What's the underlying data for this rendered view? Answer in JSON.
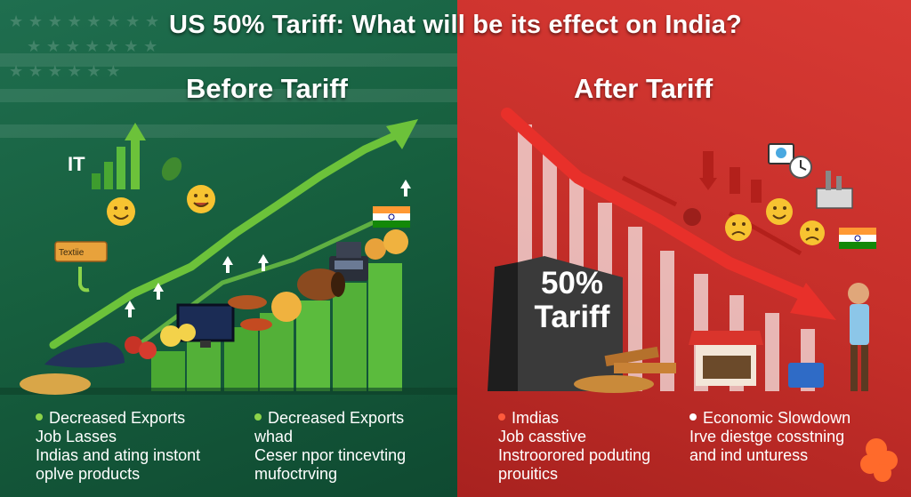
{
  "title": "US 50% Tariff: What will be its effect on India?",
  "panels": {
    "before": {
      "heading": "Before Tariff",
      "icon_label_it": "IT",
      "icon_label_textile": "Textiie",
      "bullets_col1": [
        "Decreased Exports",
        "Job Lasses",
        "Indias and ating instont",
        "oplve products"
      ],
      "bullets_col2": [
        "Decreased Exports",
        "whad",
        "Ceser npor tincevting",
        "mufoctrving"
      ]
    },
    "after": {
      "heading": "After Tariff",
      "sign_line1": "50%",
      "sign_line2": "Tariff",
      "bullets_col1": [
        "Imdias",
        "Job casstive",
        "Instroorored poduting",
        "prouitics"
      ],
      "bullets_col2": [
        "Economic Slowdown",
        "",
        "Irve diestge cosstning",
        "and ind unturess"
      ]
    }
  },
  "colors": {
    "before_bg": "#1f6e4f",
    "after_bg": "#c62f2a",
    "growth_arrow": "#6cc23a",
    "decline_arrow": "#e8302a",
    "bar_green": "#55b436"
  },
  "icons": [
    "chart-up-icon",
    "smile-emoji-icon",
    "sad-emoji-icon",
    "india-flag-icon",
    "monitor-icon",
    "cash-register-icon",
    "shop-icon",
    "worried-man-icon",
    "factory-icon",
    "clock-icon",
    "cloud-icon"
  ]
}
